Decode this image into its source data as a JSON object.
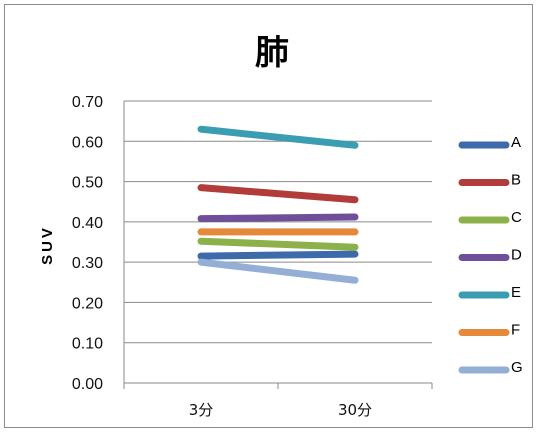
{
  "chart_data": {
    "type": "line",
    "title": "肺",
    "xlabel": "",
    "ylabel": "SUV",
    "categories": [
      "3分",
      "30分"
    ],
    "ylim": [
      0,
      0.7
    ],
    "yticks": [
      "0.00",
      "0.10",
      "0.20",
      "0.30",
      "0.40",
      "0.50",
      "0.60",
      "0.70"
    ],
    "grid": "horizontal",
    "legend_position": "right",
    "series": [
      {
        "name": "A",
        "color": "#3d6aa8",
        "values": [
          0.315,
          0.32
        ]
      },
      {
        "name": "B",
        "color": "#b13c3a",
        "values": [
          0.485,
          0.455
        ]
      },
      {
        "name": "C",
        "color": "#8cb04a",
        "values": [
          0.352,
          0.337
        ]
      },
      {
        "name": "D",
        "color": "#6f4f9a",
        "values": [
          0.408,
          0.412
        ]
      },
      {
        "name": "E",
        "color": "#3a9db1",
        "values": [
          0.63,
          0.59
        ]
      },
      {
        "name": "F",
        "color": "#e5883a",
        "values": [
          0.375,
          0.375
        ]
      },
      {
        "name": "G",
        "color": "#94aed6",
        "values": [
          0.3,
          0.255
        ]
      }
    ]
  }
}
